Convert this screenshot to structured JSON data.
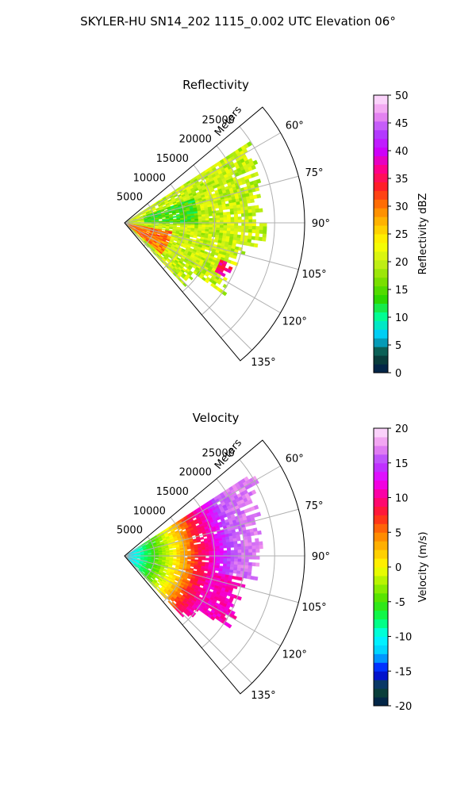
{
  "figure": {
    "suptitle": "SKYLER-HU  SN14_202  1115_0.002 UTC Elevation 06°"
  },
  "colors": {
    "grid": "#b0b0b0",
    "axis": "#000000"
  },
  "chart_data": [
    {
      "type": "heatmap",
      "title": "Reflectivity",
      "radial_label": "Meters",
      "radial_ticks": [
        "5000",
        "10000",
        "15000",
        "20000",
        "25000"
      ],
      "radial_tick_values": [
        5000,
        10000,
        15000,
        20000,
        25000
      ],
      "rlim": [
        0,
        30000
      ],
      "angle_ticks": [
        "60°",
        "75°",
        "90°",
        "105°",
        "120°",
        "135°"
      ],
      "angle_tick_values": [
        60,
        75,
        90,
        105,
        120,
        135
      ],
      "theta_range_deg": [
        50,
        140
      ],
      "grid": true,
      "colorbar": {
        "label": "Reflectivity dBZ",
        "range": [
          0,
          50
        ],
        "ticks": [
          "0",
          "5",
          "10",
          "15",
          "20",
          "25",
          "30",
          "35",
          "40",
          "45",
          "50"
        ],
        "tick_values": [
          0,
          5,
          10,
          15,
          20,
          25,
          30,
          35,
          40,
          45,
          50
        ],
        "levels": 32,
        "colormap": [
          "#001a4d",
          "#0d4a33",
          "#00c8ff",
          "#00ff9a",
          "#2dd600",
          "#7fe000",
          "#c8f018",
          "#ffff00",
          "#ffc000",
          "#ff7a00",
          "#ff2020",
          "#ff0088",
          "#cc00ff",
          "#b040ff",
          "#ee90ee",
          "#ffe8ff"
        ]
      },
      "field": {
        "description_free": true,
        "features": [
          {
            "theta": [
              50,
              140
            ],
            "r": [
              0,
              26000
            ],
            "value": 20
          },
          {
            "theta": [
              70,
              90
            ],
            "r": [
              3000,
              12000
            ],
            "value": 14
          },
          {
            "theta": [
              100,
              130
            ],
            "r": [
              0,
              8000
            ],
            "value": 30
          },
          {
            "theta": [
              110,
              118
            ],
            "r": [
              17000,
              21000
            ],
            "value": 36
          }
        ]
      }
    },
    {
      "type": "heatmap",
      "title": "Velocity",
      "radial_label": "Meters",
      "radial_ticks": [
        "5000",
        "10000",
        "15000",
        "20000",
        "25000"
      ],
      "radial_tick_values": [
        5000,
        10000,
        15000,
        20000,
        25000
      ],
      "rlim": [
        0,
        30000
      ],
      "angle_ticks": [
        "60°",
        "75°",
        "90°",
        "105°",
        "120°",
        "135°"
      ],
      "angle_tick_values": [
        60,
        75,
        90,
        105,
        120,
        135
      ],
      "theta_range_deg": [
        50,
        140
      ],
      "grid": true,
      "colorbar": {
        "label": "Velocity (m/s)",
        "range": [
          -20,
          20
        ],
        "ticks": [
          "-20",
          "-15",
          "-10",
          "-5",
          "0",
          "5",
          "10",
          "15",
          "20"
        ],
        "tick_values": [
          -20,
          -15,
          -10,
          -5,
          0,
          5,
          10,
          15,
          20
        ],
        "levels": 32,
        "colormap": [
          "#001a4d",
          "#0d4a33",
          "#0000ff",
          "#00c8ff",
          "#00ffff",
          "#00ff60",
          "#40e000",
          "#a0f000",
          "#ffff00",
          "#ffc000",
          "#ff7a00",
          "#ff2020",
          "#ff0088",
          "#ee00ff",
          "#b040ff",
          "#ee90ee",
          "#ffe8ff"
        ]
      },
      "field": {
        "radial_profile": [
          {
            "r": 0,
            "value": -12
          },
          {
            "r": 3000,
            "value": -8
          },
          {
            "r": 6000,
            "value": -3
          },
          {
            "r": 9000,
            "value": 2
          },
          {
            "r": 12000,
            "value": 8
          },
          {
            "r": 15000,
            "value": 12
          },
          {
            "r": 18000,
            "value": 16
          },
          {
            "r": 22000,
            "value": 17
          }
        ]
      }
    }
  ]
}
